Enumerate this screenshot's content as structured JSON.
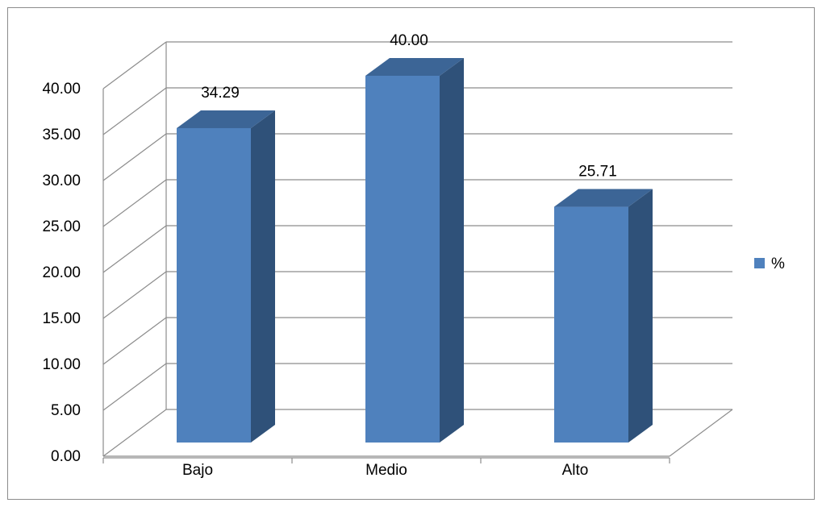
{
  "chart_data": {
    "type": "bar",
    "three_d": true,
    "categories": [
      "Bajo",
      "Medio",
      "Alto"
    ],
    "series": [
      {
        "name": "%",
        "values": [
          34.29,
          40.0,
          25.71
        ]
      }
    ],
    "data_labels": [
      "34.29",
      "40.00",
      "25.71"
    ],
    "y_ticks": [
      "0.00",
      "5.00",
      "10.00",
      "15.00",
      "20.00",
      "25.00",
      "30.00",
      "35.00",
      "40.00"
    ],
    "ylim": [
      0,
      40
    ],
    "grid": true,
    "legend": "right",
    "colors": {
      "bar_front": "#4F81BD",
      "bar_side": "#2F5179",
      "bar_top": "#3C6596",
      "grid": "#8C8C8C"
    }
  }
}
